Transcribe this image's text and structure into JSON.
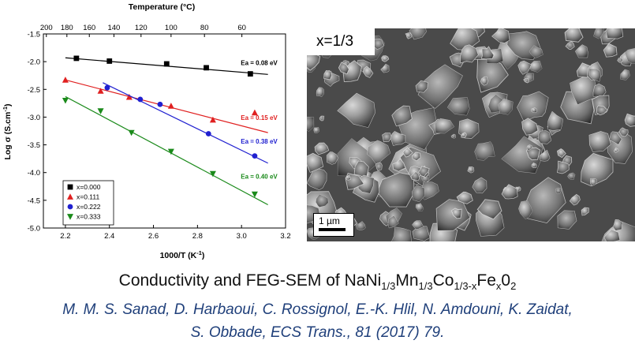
{
  "chart_data": {
    "type": "scatter",
    "title": "",
    "xlabel": "1000/T (K",
    "xlabel_sup": "-1",
    "xlabel_end": ")",
    "ylabel": "Log σ (S.cm",
    "ylabel_sup": "-1",
    "ylabel_end": ")",
    "top_axis_label": "Temperature (°C)",
    "xlim": [
      2.1,
      3.2
    ],
    "ylim": [
      -5.0,
      -1.5
    ],
    "xticks": [
      "2.2",
      "2.4",
      "2.6",
      "2.8",
      "3.0",
      "3.2"
    ],
    "yticks": [
      "-1.5",
      "-2.0",
      "-2.5",
      "-3.0",
      "-3.5",
      "-4.0",
      "-4.5",
      "-5.0"
    ],
    "top_ticks": [
      {
        "label": "60",
        "value": 60
      },
      {
        "label": "80",
        "value": 80
      },
      {
        "label": "100",
        "value": 100
      },
      {
        "label": "120",
        "value": 120
      },
      {
        "label": "140",
        "value": 140
      },
      {
        "label": "160",
        "value": 160
      },
      {
        "label": "180",
        "value": 180
      },
      {
        "label": "200",
        "value": 200
      }
    ],
    "series": [
      {
        "name": "x=0.000",
        "color": "#000000",
        "marker": "square",
        "x": [
          2.25,
          2.4,
          2.66,
          2.84,
          3.04
        ],
        "y": [
          -1.94,
          -1.99,
          -2.04,
          -2.11,
          -2.22
        ],
        "fit": [
          [
            2.2,
            -1.93
          ],
          [
            3.12,
            -2.23
          ]
        ],
        "ea_label": "Ea = 0.08 eV",
        "ea_pos": [
          3.08,
          -2.06
        ]
      },
      {
        "name": "x=0.111",
        "color": "#e02020",
        "marker": "triangle-up",
        "x": [
          2.2,
          2.36,
          2.49,
          2.68,
          2.87,
          3.06
        ],
        "y": [
          -2.33,
          -2.53,
          -2.64,
          -2.8,
          -3.05,
          -2.92
        ],
        "fit": [
          [
            2.2,
            -2.33
          ],
          [
            3.12,
            -3.28
          ]
        ],
        "ea_label": "Ea = 0.15 eV",
        "ea_pos": [
          3.08,
          -3.05
        ]
      },
      {
        "name": "x=0.222",
        "color": "#2020d0",
        "marker": "circle",
        "x": [
          2.39,
          2.54,
          2.63,
          2.85,
          3.06
        ],
        "y": [
          -2.47,
          -2.68,
          -2.77,
          -3.3,
          -3.7
        ],
        "fit": [
          [
            2.37,
            -2.38
          ],
          [
            3.12,
            -3.83
          ]
        ],
        "ea_label": "Ea = 0.38 eV",
        "ea_pos": [
          3.08,
          -3.48
        ]
      },
      {
        "name": "x=0.333",
        "color": "#1a8a1a",
        "marker": "triangle-down",
        "x": [
          2.2,
          2.36,
          2.5,
          2.68,
          2.87,
          3.06
        ],
        "y": [
          -2.7,
          -2.89,
          -3.28,
          -3.62,
          -4.02,
          -4.39
        ],
        "fit": [
          [
            2.2,
            -2.63
          ],
          [
            3.12,
            -4.58
          ]
        ],
        "ea_label": "Ea = 0.40 eV",
        "ea_pos": [
          3.08,
          -4.11
        ]
      }
    ],
    "legend_placement": "bottom-left",
    "grid": false
  },
  "sem": {
    "label": "x=1/3",
    "scalebar": "1 µm"
  },
  "caption": {
    "prefix": "Conductivity and FEG-SEM of NaNi",
    "s1": "1/3",
    "mid1": "Mn",
    "s2": "1/3",
    "mid2": "Co",
    "s3": "1/3-x",
    "mid3": "Fe",
    "s4": "x",
    "mid4": "0",
    "s5": "2"
  },
  "citation": {
    "line1": "M. M. S. Sanad, D. Harbaoui, C. Rossignol, E.-K. Hlil, N. Amdouni, K. Zaidat,",
    "line2": "S. Obbade, ECS Trans., 81 (2017) 79."
  }
}
